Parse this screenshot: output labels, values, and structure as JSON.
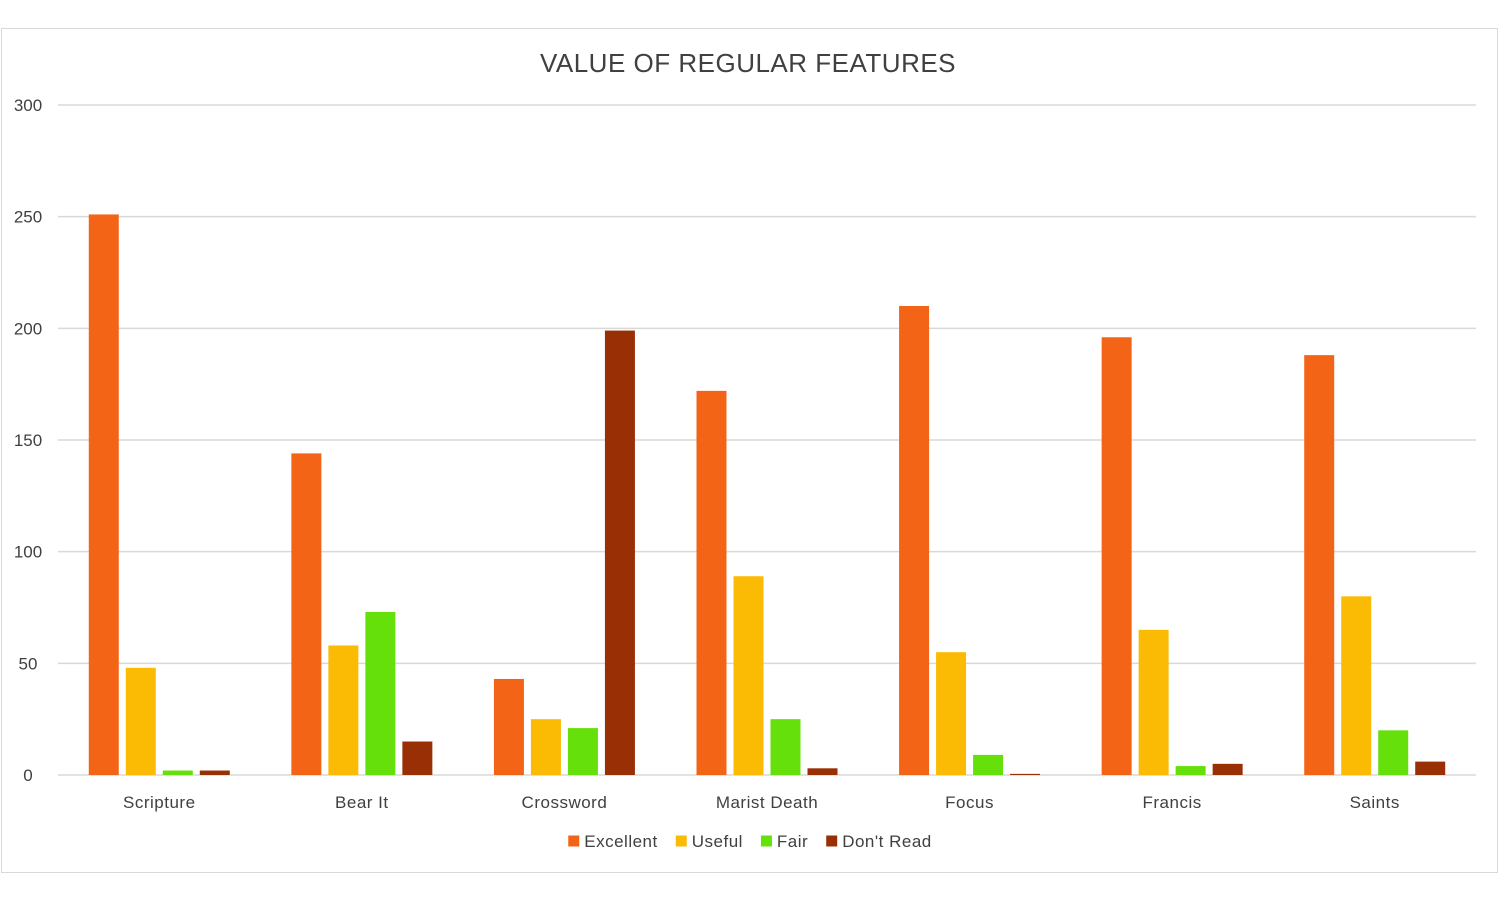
{
  "chart_data": {
    "type": "bar",
    "title": "VALUE OF REGULAR FEATURES",
    "xlabel": "",
    "ylabel": "",
    "categories": [
      "Scripture",
      "Bear It",
      "Crossword",
      "Marist Death",
      "Focus",
      "Francis",
      "Saints"
    ],
    "series": [
      {
        "name": "Excellent",
        "color": "#f46417",
        "values": [
          251,
          144,
          43,
          172,
          210,
          196,
          188
        ]
      },
      {
        "name": "Useful",
        "color": "#fbbb05",
        "values": [
          48,
          58,
          25,
          89,
          55,
          65,
          80
        ]
      },
      {
        "name": "Fair",
        "color": "#66e00a",
        "values": [
          2,
          73,
          21,
          25,
          9,
          4,
          20
        ]
      },
      {
        "name": "Don't Read",
        "color": "#993005",
        "values": [
          2,
          15,
          199,
          3,
          0.5,
          5,
          6
        ]
      }
    ],
    "ylim": [
      0,
      300
    ],
    "yticks": [
      "0",
      "50",
      "100",
      "150",
      "200",
      "250",
      "300"
    ],
    "grid": true,
    "legend_position": "bottom"
  }
}
